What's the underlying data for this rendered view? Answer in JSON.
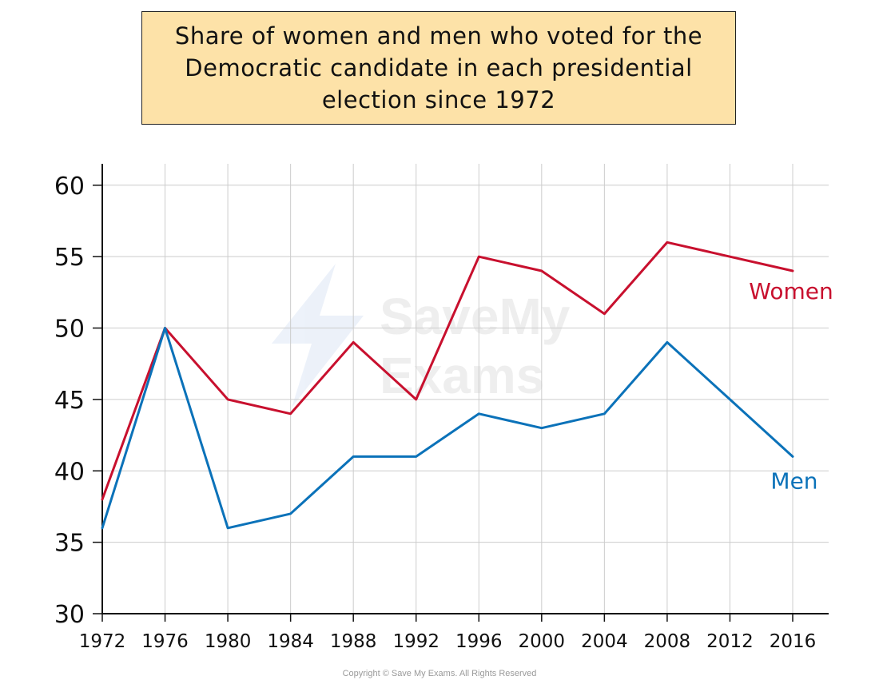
{
  "chart_data": {
    "type": "line",
    "title": "Share of women and men who voted for the Democratic candidate in each presidential election since 1972",
    "x": [
      1972,
      1976,
      1980,
      1984,
      1988,
      1992,
      1996,
      2000,
      2004,
      2008,
      2012,
      2016
    ],
    "x_tick_labels": [
      "1972",
      "1976",
      "1980",
      "1984",
      "1988",
      "1992",
      "1996",
      "2000",
      "2004",
      "2008",
      "2012",
      "2016"
    ],
    "y_tick_labels": [
      "30",
      "35",
      "40",
      "45",
      "50",
      "55",
      "60"
    ],
    "y_ticks": [
      30,
      35,
      40,
      45,
      50,
      55,
      60
    ],
    "xlim": [
      1972,
      2016
    ],
    "ylim": [
      30,
      61.5
    ],
    "xlabel": "",
    "ylabel": "",
    "grid": true,
    "series": [
      {
        "name": "Women",
        "color": "#c8102e",
        "values": [
          38,
          50,
          45,
          44,
          49,
          45,
          55,
          54,
          51,
          56,
          55,
          54
        ]
      },
      {
        "name": "Men",
        "color": "#0b72b9",
        "values": [
          36,
          50,
          36,
          37,
          41,
          41,
          44,
          43,
          44,
          49,
          45,
          41
        ]
      }
    ],
    "watermark": [
      "Save",
      "My",
      "Exams"
    ]
  },
  "copyright": "Copyright © Save My Exams. All Rights Reserved"
}
